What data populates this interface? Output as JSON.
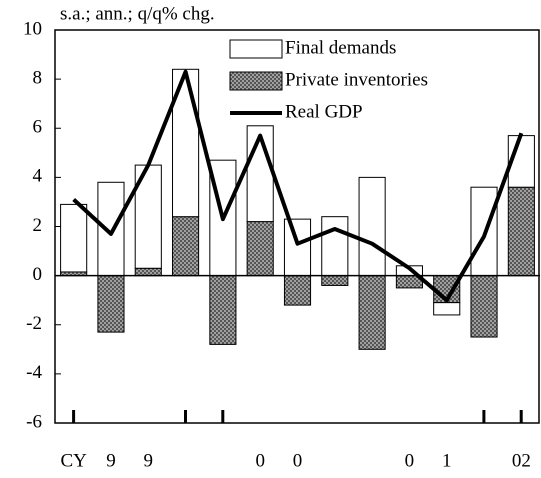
{
  "chart_data": {
    "type": "stacked_bar_line",
    "subtitle": "s.a.; ann.; q/q% chg.",
    "categories": [
      "CY",
      "9",
      "9",
      null,
      null,
      "0",
      "0",
      null,
      null,
      "0",
      "1",
      null,
      "02"
    ],
    "series": [
      {
        "name": "Private inventories",
        "kind": "bar",
        "color": "#a0a0a0",
        "pattern": true,
        "values": [
          0.15,
          -2.3,
          0.3,
          2.4,
          -2.8,
          2.2,
          -1.2,
          -0.4,
          -3.0,
          -0.5,
          -1.1,
          -2.5,
          3.6
        ]
      },
      {
        "name": "Final demands",
        "kind": "bar",
        "color": "#ffffff",
        "values": [
          2.75,
          3.8,
          4.2,
          6.0,
          4.7,
          3.9,
          2.3,
          2.4,
          4.0,
          0.4,
          -0.5,
          3.6,
          2.1
        ]
      },
      {
        "name": "Real GDP",
        "kind": "line",
        "color": "#000000",
        "values": [
          3.1,
          1.7,
          4.5,
          8.3,
          2.3,
          5.7,
          1.3,
          1.9,
          1.3,
          0.3,
          -1.0,
          1.6,
          5.8
        ]
      }
    ],
    "legend_order": [
      1,
      0,
      2
    ],
    "legend": "top-right",
    "ylim": [
      -6,
      10
    ],
    "yticks": [
      -6,
      -4,
      -2,
      0,
      2,
      4,
      6,
      8,
      10
    ]
  }
}
